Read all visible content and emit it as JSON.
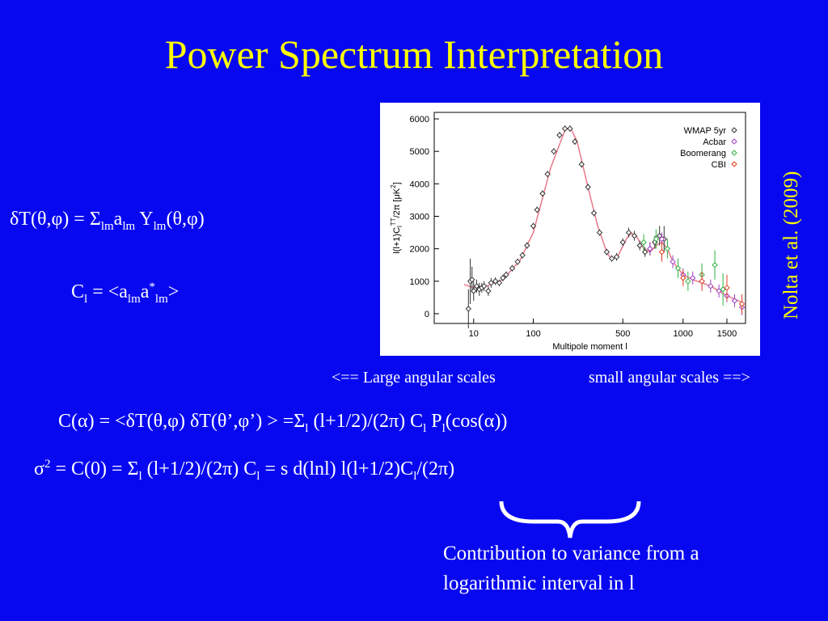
{
  "slide": {
    "title": "Power Spectrum Interpretation",
    "citation": "Nolta et al. (2009)",
    "eq1": [
      "δT(θ,φ) = Σ",
      "lm",
      "a",
      "lm",
      " Y",
      "lm",
      "(θ,φ)"
    ],
    "eq2": [
      "C",
      "l",
      " = <a",
      "lm",
      "a",
      "*",
      "lm",
      ">"
    ],
    "scale_left": "<== Large angular scales",
    "scale_right": "small angular scales ==>",
    "eq3": [
      "C(α) = <δT(θ,φ) δT(θ’,φ’) > =Σ",
      "l",
      " (l+1/2)/(2π) C",
      "l",
      " P",
      "l",
      "(cos(α))"
    ],
    "eq4": [
      "σ",
      "2",
      " = C(0) = Σ",
      "l",
      " (l+1/2)/(2π) C",
      "l",
      " = s d(lnl) l(l+1/2)C",
      "l",
      "/(2π)"
    ],
    "note": [
      "Contribution to variance from a",
      "logarithmic interval in l"
    ]
  },
  "chart_data": {
    "type": "scatter",
    "xlabel": "Multipole moment  l",
    "ylabel": [
      "l(l+1)C",
      "l",
      "TT",
      "/2π [μK",
      "2",
      "]"
    ],
    "xscale": "power",
    "xexponent": 0.4,
    "xlim": [
      0,
      1750
    ],
    "xticks": [
      10,
      100,
      500,
      1000,
      1500
    ],
    "ylim": [
      -300,
      6200
    ],
    "yticks": [
      0,
      1000,
      2000,
      3000,
      4000,
      5000,
      6000
    ],
    "legend": "top-right",
    "series": [
      {
        "name": "WMAP 5yr",
        "color": "#333333",
        "x": [
          7,
          8,
          9,
          10,
          12,
          14,
          16,
          18,
          22,
          25,
          30,
          35,
          40,
          45,
          55,
          65,
          75,
          85,
          100,
          110,
          125,
          140,
          160,
          180,
          200,
          220,
          240,
          270,
          300,
          330,
          360,
          400,
          430,
          460,
          500,
          540,
          580,
          620,
          660,
          700,
          740,
          780,
          820
        ],
        "values": [
          150,
          1000,
          1050,
          700,
          850,
          750,
          800,
          850,
          700,
          950,
          1000,
          950,
          1100,
          1200,
          1400,
          1600,
          1800,
          2100,
          2700,
          3200,
          3700,
          4300,
          5000,
          5500,
          5700,
          5700,
          5300,
          4600,
          3900,
          3100,
          2500,
          1900,
          1700,
          1750,
          2200,
          2500,
          2400,
          2100,
          1900,
          2000,
          2200,
          2400,
          2300
        ],
        "errors": [
          600,
          700,
          400,
          300,
          200,
          200,
          150,
          150,
          150,
          150,
          120,
          100,
          100,
          100,
          100,
          100,
          100,
          100,
          100,
          100,
          100,
          100,
          100,
          100,
          100,
          100,
          100,
          100,
          100,
          100,
          100,
          100,
          100,
          120,
          120,
          150,
          150,
          150,
          150,
          200,
          200,
          300,
          400
        ]
      },
      {
        "name": "Acbar",
        "color": "#a040c0",
        "x": [
          700,
          800,
          900,
          1000,
          1100,
          1200,
          1300,
          1400,
          1500,
          1600,
          1700
        ],
        "values": [
          2000,
          2300,
          1600,
          1200,
          1100,
          1000,
          850,
          700,
          550,
          400,
          200
        ],
        "errors": [
          200,
          200,
          200,
          200,
          200,
          200,
          200,
          200,
          200,
          200,
          250
        ]
      },
      {
        "name": "Boomerang",
        "color": "#30b040",
        "x": [
          650,
          750,
          850,
          950,
          1050,
          1200,
          1350,
          1450
        ],
        "values": [
          2200,
          2300,
          2000,
          1400,
          1000,
          1200,
          1500,
          750
        ],
        "errors": [
          250,
          300,
          300,
          300,
          300,
          350,
          450,
          500
        ]
      },
      {
        "name": "CBI",
        "color": "#e04020",
        "x": [
          800,
          1000,
          1200,
          1500,
          1700
        ],
        "values": [
          1900,
          1100,
          1000,
          800,
          300
        ],
        "errors": [
          300,
          250,
          300,
          400,
          300
        ]
      }
    ],
    "lines": [
      {
        "color": "#e87888",
        "x": [
          5,
          10,
          20,
          40,
          70,
          100,
          150,
          200,
          220,
          250,
          300,
          350,
          400,
          430,
          470,
          530,
          560,
          600,
          650,
          700,
          750,
          800,
          850,
          900,
          1000,
          1100,
          1200,
          1300,
          1400,
          1500,
          1600,
          1700
        ],
        "values": [
          900,
          800,
          850,
          1050,
          1650,
          2500,
          4500,
          5650,
          5750,
          5300,
          3900,
          2700,
          1900,
          1650,
          1800,
          2350,
          2480,
          2350,
          2000,
          1900,
          2100,
          2200,
          2000,
          1600,
          1200,
          1050,
          950,
          850,
          700,
          550,
          450,
          350
        ]
      }
    ]
  }
}
